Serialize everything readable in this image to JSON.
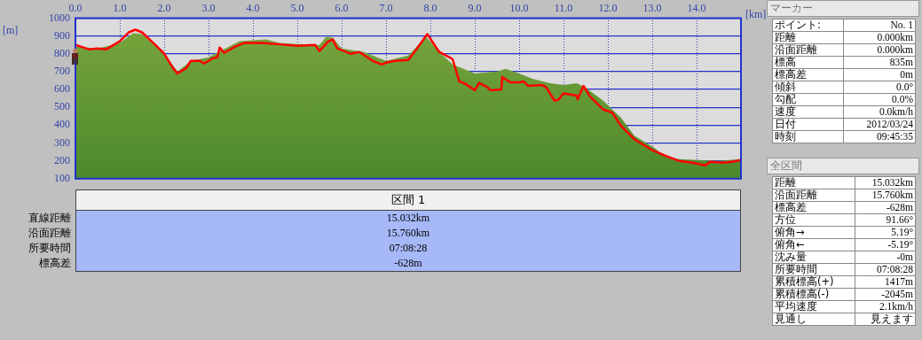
{
  "chart_data": {
    "type": "area",
    "xlabel": "[km]",
    "ylabel": "[m]",
    "xlim": [
      0,
      15
    ],
    "ylim": [
      100,
      1000
    ],
    "xticks": [
      {
        "value": 0,
        "label": "0.0"
      },
      {
        "value": 1,
        "label": "1.0"
      },
      {
        "value": 2,
        "label": "2.0"
      },
      {
        "value": 3,
        "label": "3.0"
      },
      {
        "value": 4,
        "label": "4.0"
      },
      {
        "value": 5,
        "label": "5.0"
      },
      {
        "value": 6,
        "label": "6.0"
      },
      {
        "value": 7,
        "label": "7.0"
      },
      {
        "value": 8,
        "label": "8.0"
      },
      {
        "value": 9,
        "label": "9.0"
      },
      {
        "value": 10,
        "label": "10.0"
      },
      {
        "value": 11,
        "label": "11.0"
      },
      {
        "value": 12,
        "label": "12.0"
      },
      {
        "value": 13,
        "label": "13.0"
      },
      {
        "value": 14,
        "label": "14.0"
      }
    ],
    "yticks": [
      100,
      200,
      300,
      400,
      500,
      600,
      700,
      800,
      900,
      1000
    ],
    "grid": true,
    "legend": false,
    "marker": "none",
    "series": [
      {
        "color": "#7aa53c",
        "x": [
          0,
          0.5,
          1.0,
          1.3,
          1.5,
          2.0,
          2.3,
          2.6,
          3.0,
          3.3,
          3.7,
          4.0,
          4.3,
          4.6,
          5.0,
          5.5,
          5.65,
          5.8,
          6.0,
          6.5,
          6.8,
          7.0,
          7.5,
          7.9,
          8.2,
          8.5,
          8.6,
          9.0,
          9.5,
          9.7,
          10.0,
          10.3,
          10.7,
          11.0,
          11.3,
          11.5,
          11.9,
          12.3,
          12.6,
          13.0,
          13.3,
          13.6,
          14.0,
          14.5,
          15.0
        ],
        "values": [
          840,
          830,
          860,
          915,
          910,
          800,
          700,
          760,
          780,
          820,
          870,
          875,
          880,
          860,
          855,
          850,
          895,
          890,
          830,
          810,
          780,
          760,
          790,
          895,
          810,
          740,
          730,
          690,
          700,
          715,
          690,
          660,
          635,
          625,
          635,
          610,
          535,
          440,
          340,
          280,
          225,
          210,
          205,
          200,
          210
        ]
      },
      {
        "type": "line",
        "color": "#ff0000",
        "x": [
          0,
          0.3,
          0.5,
          0.7,
          1.0,
          1.2,
          1.35,
          1.5,
          1.8,
          2.0,
          2.2,
          2.3,
          2.5,
          2.6,
          2.8,
          2.9,
          3.1,
          3.2,
          3.25,
          3.35,
          3.6,
          3.8,
          4.2,
          4.5,
          5.0,
          5.4,
          5.5,
          5.7,
          5.8,
          5.9,
          6.2,
          6.4,
          6.7,
          6.9,
          7.0,
          7.2,
          7.5,
          7.7,
          7.93,
          8.2,
          8.5,
          8.65,
          8.8,
          9.0,
          9.1,
          9.3,
          9.35,
          9.6,
          9.62,
          9.8,
          10.0,
          10.1,
          10.2,
          10.5,
          10.6,
          10.8,
          10.9,
          11.0,
          11.3,
          11.32,
          11.45,
          11.6,
          11.9,
          12.1,
          12.3,
          12.6,
          12.9,
          13.0,
          13.3,
          13.6,
          13.9,
          14.2,
          14.3,
          14.6,
          14.8,
          15.0
        ],
        "values": [
          850,
          825,
          830,
          825,
          870,
          920,
          935,
          920,
          850,
          800,
          720,
          690,
          720,
          760,
          760,
          745,
          775,
          780,
          835,
          805,
          840,
          860,
          860,
          855,
          845,
          850,
          815,
          870,
          880,
          830,
          800,
          810,
          760,
          740,
          750,
          760,
          765,
          830,
          910,
          810,
          770,
          645,
          630,
          595,
          637,
          610,
          595,
          600,
          670,
          640,
          640,
          645,
          620,
          625,
          615,
          537,
          545,
          578,
          565,
          545,
          620,
          560,
          487,
          470,
          395,
          320,
          275,
          260,
          228,
          200,
          190,
          175,
          195,
          190,
          195,
          205
        ]
      }
    ],
    "annotations": [
      "区間 1",
      "直線距離",
      "沿面距離",
      "所要時間",
      "標高差",
      "15.032km",
      "15.760km",
      "07:08:28",
      "-628m",
      "マーカー",
      "ポイント:",
      "No. 1",
      "距離",
      "0.000km",
      "沿面距離",
      "0.000km",
      "標高",
      "835m",
      "標高差",
      "0m",
      "傾斜",
      "0.0°",
      "勾配",
      "0.0%",
      "速度",
      "0.0km/h",
      "日付",
      "2012/03/24",
      "時刻",
      "09:45:35",
      "全区間",
      "距離",
      "15.032km",
      "沿面距離",
      "15.760km",
      "標高差",
      "-628m",
      "方位",
      "91.66°",
      "俯角→",
      "5.19°",
      "俯角←",
      "-5.19°",
      "沈み量",
      "-0m",
      "所要時間",
      "07:08:28",
      "累積標高(+)",
      "1417m",
      "累積標高(-)",
      "-2045m",
      "平均速度",
      "2.1km/h",
      "見通し",
      "見えます"
    ]
  }
}
